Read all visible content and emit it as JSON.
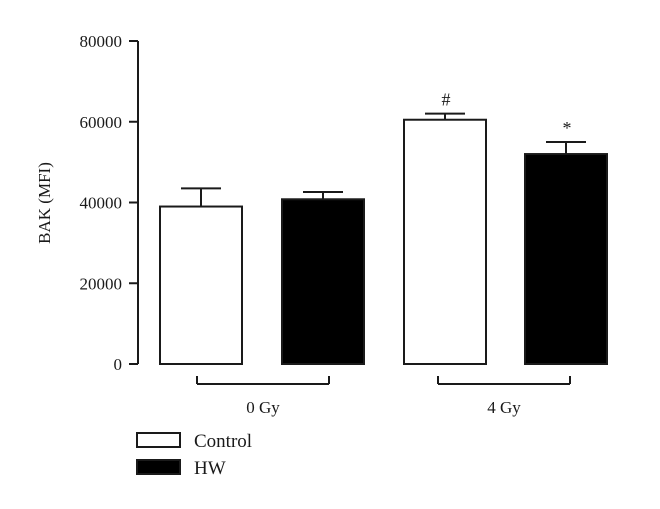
{
  "chart_data": {
    "type": "bar",
    "ylabel": "BAK (MFI)",
    "ylim": [
      0,
      80000
    ],
    "yticks": [
      0,
      20000,
      40000,
      60000,
      80000
    ],
    "ytick_labels": [
      "0",
      "20000",
      "40000",
      "60000",
      "80000"
    ],
    "groups": [
      "0 Gy",
      "4 Gy"
    ],
    "series": [
      {
        "name": "Control",
        "fill": "#ffffff",
        "values": [
          39000,
          60500
        ],
        "errors": [
          4500,
          1500
        ],
        "annotations": [
          "",
          "#"
        ]
      },
      {
        "name": "HW",
        "fill": "#000000",
        "values": [
          40800,
          52000
        ],
        "errors": [
          1800,
          3000
        ],
        "annotations": [
          "",
          "*"
        ]
      }
    ],
    "legend": {
      "placement": "bottom-left"
    },
    "grid": false
  }
}
